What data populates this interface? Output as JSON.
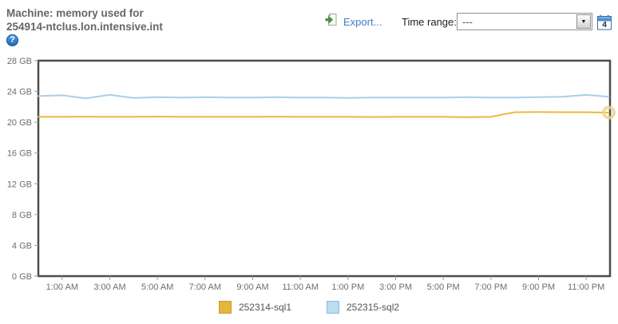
{
  "header": {
    "title_line1": "Machine: memory used for",
    "title_line2": "254914-ntclus.lon.intensive.int",
    "help_icon": "?",
    "export_label": "Export...",
    "time_range_label": "Time range:",
    "time_range_value": "---",
    "calendar_day": "4"
  },
  "colors": {
    "title_text": "#666666",
    "link_blue": "#3f7fc1",
    "axis_text": "#6e6e6e",
    "plot_border": "#4d4d4d",
    "series1_line": "#e9b93f",
    "series2_line": "#a9cfe9",
    "marker_ring": "#f0d491"
  },
  "chart_data": {
    "type": "line",
    "title": "Machine: memory used for 254914-ntclus.lon.intensive.int",
    "xlabel": "",
    "ylabel": "",
    "y_unit": "GB",
    "ylim": [
      0,
      28
    ],
    "grid": false,
    "legend_position": "bottom",
    "x_hours": [
      0,
      1,
      2,
      3,
      4,
      5,
      6,
      7,
      8,
      9,
      10,
      11,
      12,
      13,
      14,
      15,
      16,
      17,
      18,
      19,
      20,
      21,
      22,
      23,
      24
    ],
    "yticks": [
      {
        "value": 0,
        "label": "0 GB"
      },
      {
        "value": 4,
        "label": "4 GB"
      },
      {
        "value": 8,
        "label": "8 GB"
      },
      {
        "value": 12,
        "label": "12 GB"
      },
      {
        "value": 16,
        "label": "16 GB"
      },
      {
        "value": 20,
        "label": "20 GB"
      },
      {
        "value": 24,
        "label": "24 GB"
      },
      {
        "value": 28,
        "label": "28 GB"
      }
    ],
    "xticks": [
      {
        "hour": 1,
        "label": "1:00 AM"
      },
      {
        "hour": 3,
        "label": "3:00 AM"
      },
      {
        "hour": 5,
        "label": "5:00 AM"
      },
      {
        "hour": 7,
        "label": "7:00 AM"
      },
      {
        "hour": 9,
        "label": "9:00 AM"
      },
      {
        "hour": 11,
        "label": "11:00 AM"
      },
      {
        "hour": 13,
        "label": "1:00 PM"
      },
      {
        "hour": 15,
        "label": "3:00 PM"
      },
      {
        "hour": 17,
        "label": "5:00 PM"
      },
      {
        "hour": 19,
        "label": "7:00 PM"
      },
      {
        "hour": 21,
        "label": "9:00 PM"
      },
      {
        "hour": 23,
        "label": "11:00 PM"
      }
    ],
    "series": [
      {
        "name": "252314-sql1",
        "color": "#e9b93f",
        "swatch": "#e4b73b",
        "swatch_border": "#c79a2d",
        "values": [
          20.7,
          20.7,
          20.72,
          20.7,
          20.7,
          20.73,
          20.7,
          20.7,
          20.7,
          20.7,
          20.72,
          20.7,
          20.7,
          20.7,
          20.68,
          20.7,
          20.7,
          20.7,
          20.65,
          20.7,
          21.3,
          21.32,
          21.3,
          21.3,
          21.25
        ]
      },
      {
        "name": "252315-sql2",
        "color": "#a9cfe9",
        "swatch": "#bcdcf2",
        "swatch_border": "#8db9da",
        "values": [
          23.4,
          23.5,
          23.1,
          23.55,
          23.15,
          23.25,
          23.2,
          23.25,
          23.2,
          23.2,
          23.25,
          23.2,
          23.2,
          23.15,
          23.2,
          23.2,
          23.2,
          23.2,
          23.25,
          23.2,
          23.2,
          23.25,
          23.3,
          23.55,
          23.3
        ]
      }
    ],
    "end_marker": {
      "series": "252314-sql1",
      "hour": 24,
      "value": 21.25,
      "color": "#f0d491"
    }
  }
}
